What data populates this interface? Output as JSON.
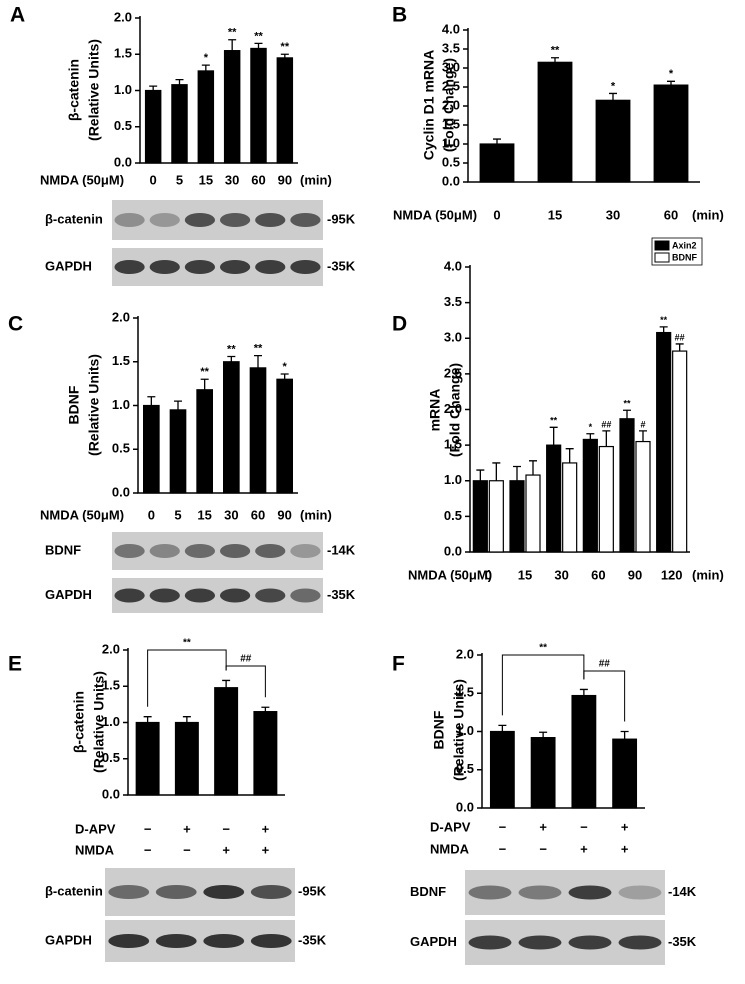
{
  "chart_data": [
    {
      "panel": "A",
      "type": "bar",
      "y_label": [
        "β-catenin",
        "(Relative Units)"
      ],
      "x_prefix": "NMDA (50μM)",
      "x_suffix": "(min)",
      "categories": [
        "0",
        "5",
        "15",
        "30",
        "60",
        "90"
      ],
      "values": [
        1.0,
        1.08,
        1.27,
        1.55,
        1.58,
        1.45
      ],
      "errors": [
        0.06,
        0.07,
        0.08,
        0.15,
        0.07,
        0.05
      ],
      "annotations": [
        null,
        null,
        "*",
        "**",
        "**",
        "**"
      ],
      "color": "#000000",
      "ylim": [
        0,
        2
      ],
      "yticks": [
        {
          "value": 0,
          "label": "0.0"
        },
        0.5,
        {
          "value": 1,
          "label": "1.0"
        },
        1.5,
        {
          "value": 2,
          "label": "2.0"
        }
      ],
      "blots": [
        {
          "label": "β-catenin",
          "marker": "-95K"
        },
        {
          "label": "GAPDH",
          "marker": "-35K"
        }
      ]
    },
    {
      "panel": "B",
      "type": "bar",
      "y_label": [
        "Cyclin D1 mRNA",
        "(Fold Change)"
      ],
      "x_prefix": "NMDA (50μM)",
      "x_suffix": "(min)",
      "categories": [
        "0",
        "15",
        "30",
        "60"
      ],
      "values": [
        1.0,
        3.15,
        2.15,
        2.55
      ],
      "errors": [
        0.13,
        0.12,
        0.18,
        0.1
      ],
      "annotations": [
        null,
        "**",
        "*",
        "*"
      ],
      "color": "#000000",
      "ylim": [
        0,
        4
      ],
      "yticks": [
        {
          "value": 0,
          "label": "0.0"
        },
        0.5,
        {
          "value": 1,
          "label": "1.0"
        },
        1.5,
        {
          "value": 2,
          "label": "2.0"
        },
        2.5,
        {
          "value": 3,
          "label": "3.0"
        },
        3.5,
        {
          "value": 4,
          "label": "4.0"
        }
      ]
    },
    {
      "panel": "C",
      "type": "bar",
      "y_label": [
        "BDNF",
        "(Relative Units)"
      ],
      "x_prefix": "NMDA (50μM)",
      "x_suffix": "(min)",
      "categories": [
        "0",
        "5",
        "15",
        "30",
        "60",
        "90"
      ],
      "values": [
        1.0,
        0.95,
        1.18,
        1.5,
        1.43,
        1.3
      ],
      "errors": [
        0.1,
        0.1,
        0.12,
        0.06,
        0.14,
        0.06
      ],
      "annotations": [
        null,
        null,
        "**",
        "**",
        "**",
        "*"
      ],
      "color": "#000000",
      "ylim": [
        0,
        2
      ],
      "yticks": [
        {
          "value": 0,
          "label": "0.0"
        },
        0.5,
        {
          "value": 1,
          "label": "1.0"
        },
        1.5,
        {
          "value": 2,
          "label": "2.0"
        }
      ],
      "blots": [
        {
          "label": "BDNF",
          "marker": "-14K"
        },
        {
          "label": "GAPDH",
          "marker": "-35K"
        }
      ]
    },
    {
      "panel": "D",
      "type": "bar",
      "y_label": [
        "mRNA",
        "(Fold Change)"
      ],
      "x_prefix": "NMDA (50μM)",
      "x_suffix": "(min)",
      "categories": [
        "0",
        "15",
        "30",
        "60",
        "90",
        "120"
      ],
      "series": [
        {
          "name": "Axin2",
          "color": "#000000",
          "values": [
            1.0,
            1.0,
            1.5,
            1.58,
            1.87,
            3.08
          ],
          "errors": [
            0.15,
            0.2,
            0.25,
            0.08,
            0.12,
            0.08
          ],
          "annotations": [
            null,
            null,
            "**",
            "*",
            "**",
            "**"
          ]
        },
        {
          "name": "BDNF",
          "color": "#ffffff",
          "values": [
            1.0,
            1.08,
            1.25,
            1.48,
            1.55,
            2.82
          ],
          "errors": [
            0.25,
            0.2,
            0.2,
            0.22,
            0.15,
            0.1
          ],
          "annotations": [
            null,
            null,
            null,
            "##",
            "#",
            "##"
          ]
        }
      ],
      "legend": "upper right",
      "ylim": [
        0,
        4
      ],
      "yticks": [
        {
          "value": 0,
          "label": "0.0"
        },
        0.5,
        {
          "value": 1,
          "label": "1.0"
        },
        1.5,
        {
          "value": 2,
          "label": "2.0"
        },
        2.5,
        {
          "value": 3,
          "label": "3.0"
        },
        3.5,
        {
          "value": 4,
          "label": "4.0"
        }
      ]
    },
    {
      "panel": "E",
      "type": "bar",
      "y_label": [
        "β-catenin",
        "(Relative Units)"
      ],
      "conditions": [
        {
          "label": "D-APV",
          "signs": [
            "−",
            "+",
            "−",
            "+"
          ]
        },
        {
          "label": "NMDA",
          "signs": [
            "−",
            "−",
            "+",
            "+"
          ]
        }
      ],
      "values": [
        1.0,
        1.0,
        1.48,
        1.15
      ],
      "errors": [
        0.08,
        0.08,
        0.1,
        0.06
      ],
      "color": "#000000",
      "brackets": [
        {
          "label": "**"
        },
        {
          "label": "##"
        }
      ],
      "ylim": [
        0,
        2
      ],
      "yticks": [
        {
          "value": 0,
          "label": "0.0"
        },
        0.5,
        {
          "value": 1,
          "label": "1.0"
        },
        1.5,
        {
          "value": 2,
          "label": "2.0"
        }
      ],
      "blots": [
        {
          "label": "β-catenin",
          "marker": "-95K"
        },
        {
          "label": "GAPDH",
          "marker": "-35K"
        }
      ]
    },
    {
      "panel": "F",
      "type": "bar",
      "y_label": [
        "BDNF",
        "(Relative Units)"
      ],
      "conditions": [
        {
          "label": "D-APV",
          "signs": [
            "−",
            "+",
            "−",
            "+"
          ]
        },
        {
          "label": "NMDA",
          "signs": [
            "−",
            "−",
            "+",
            "+"
          ]
        }
      ],
      "values": [
        1.0,
        0.92,
        1.47,
        0.9
      ],
      "errors": [
        0.08,
        0.07,
        0.08,
        0.1
      ],
      "color": "#000000",
      "brackets": [
        {
          "label": "**"
        },
        {
          "label": "##"
        }
      ],
      "ylim": [
        0,
        2
      ],
      "yticks": [
        {
          "value": 0,
          "label": "0.0"
        },
        0.5,
        {
          "value": 1,
          "label": "1.0"
        },
        1.5,
        {
          "value": 2,
          "label": "2.0"
        }
      ],
      "blots": [
        {
          "label": "BDNF",
          "marker": "-14K"
        },
        {
          "label": "GAPDH",
          "marker": "-35K"
        }
      ]
    }
  ]
}
